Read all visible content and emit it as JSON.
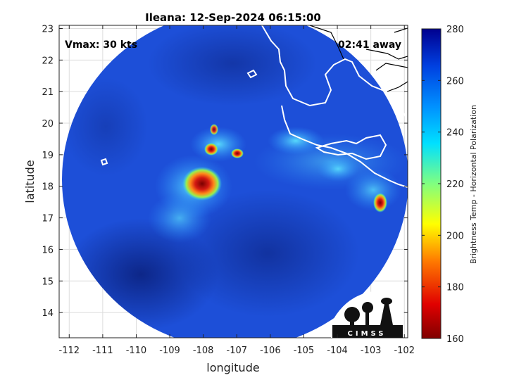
{
  "title": "Ileana: 12-Sep-2024 06:15:00",
  "vmax_label": "Vmax: 30 kts",
  "time_away_label": "02:41 away",
  "xlabel": "longitude",
  "ylabel": "latitude",
  "colorbar_label": "Brightness Temp - Horizontal Polarization",
  "logo_text": "CIMSS",
  "map_data": {
    "type": "heatmap",
    "x_ticks": [
      "-112",
      "-111",
      "-110",
      "-109",
      "-108",
      "-107",
      "-106",
      "-105",
      "-104",
      "-103",
      "-102"
    ],
    "y_ticks": [
      "14",
      "15",
      "16",
      "17",
      "18",
      "19",
      "20",
      "21",
      "22",
      "23"
    ],
    "xlim": [
      -112.3,
      -101.9
    ],
    "ylim": [
      13.2,
      23.1
    ],
    "grid": true,
    "colorbar": {
      "min": 160,
      "max": 280,
      "ticks": [
        "160",
        "180",
        "200",
        "220",
        "240",
        "260",
        "280"
      ]
    },
    "colors": {
      "ocean_cold": "#0a1f7a",
      "background_field": "#1d4fd8",
      "warm_band": "#3aa0ff",
      "cyan": "#25d4ff",
      "core_hot": "#c81414",
      "coastline": "#ffffff"
    }
  }
}
